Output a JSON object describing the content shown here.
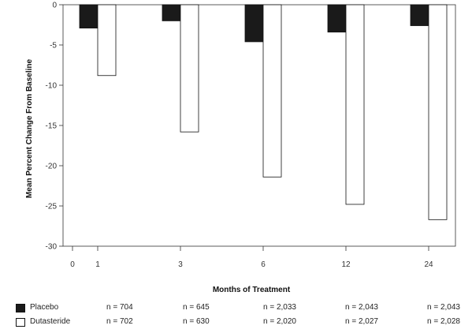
{
  "chart_data": {
    "type": "bar",
    "title": "",
    "xlabel": "Months of Treatment",
    "ylabel": "Mean Percent Change From Baseline",
    "ylim": [
      -30,
      0
    ],
    "yticks": [
      0,
      -5,
      -10,
      -15,
      -20,
      -25,
      -30
    ],
    "x_axis_zero_label": "0",
    "categories": [
      "1",
      "3",
      "6",
      "12",
      "24"
    ],
    "series": [
      {
        "name": "Placebo",
        "color": "#1a1a1a",
        "values": [
          -2.9,
          -2.0,
          -4.6,
          -3.4,
          -2.6
        ],
        "n": [
          "n = 704",
          "n = 645",
          "n = 2,033",
          "n = 2,043",
          "n = 2,043"
        ]
      },
      {
        "name": "Dutasteride",
        "color": "#ffffff",
        "values": [
          -8.8,
          -15.8,
          -21.4,
          -24.8,
          -26.7
        ],
        "n": [
          "n = 702",
          "n = 630",
          "n = 2,020",
          "n = 2,027",
          "n = 2,028"
        ]
      }
    ],
    "grid": false,
    "legend_position": "bottom-left"
  }
}
